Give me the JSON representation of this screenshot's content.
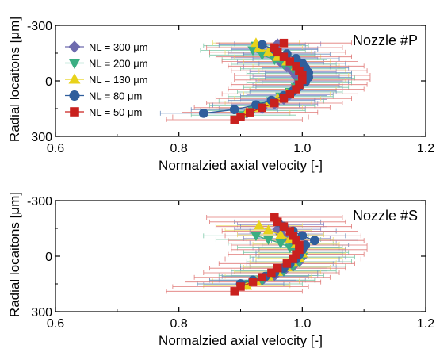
{
  "colors": {
    "s300": "#6E6BAE",
    "s200": "#3AAE82",
    "s130": "#E8D21A",
    "s80": "#2F5E9C",
    "s50": "#C9211E",
    "err300": "#8F8CC8",
    "err200": "#7DC9A8",
    "err130": "#EEE27A",
    "err80": "#6E90C0",
    "err50": "#E07A78"
  },
  "chart_data": [
    {
      "type": "scatter",
      "title": "Nozzle #P",
      "xlabel": "Normalzied axial velocity [-]",
      "ylabel": "Radial locaitons [μm]",
      "xlim": [
        0.6,
        1.2
      ],
      "ylim": [
        -300,
        300
      ],
      "y_inverted": true,
      "xticks": [
        "0.6",
        "0.8",
        "1.0",
        "1.2"
      ],
      "yticks": [
        "-300",
        "0",
        "300"
      ],
      "legend": "top-left",
      "error_bars": "horizontal",
      "series": [
        {
          "name": "NL = 300 μm",
          "marker": "diamond",
          "color": "s300",
          "err_color": "err300",
          "err": 0.07,
          "points": [
            [
              0.96,
              -200
            ],
            [
              0.955,
              -175
            ],
            [
              0.95,
              -150
            ],
            [
              0.955,
              -125
            ],
            [
              0.965,
              -100
            ],
            [
              0.975,
              -75
            ],
            [
              0.985,
              -50
            ],
            [
              0.99,
              -25
            ],
            [
              0.995,
              0
            ],
            [
              0.99,
              25
            ],
            [
              0.985,
              50
            ],
            [
              0.98,
              75
            ],
            [
              0.97,
              100
            ],
            [
              0.955,
              125
            ],
            [
              0.935,
              150
            ],
            [
              0.91,
              175
            ]
          ]
        },
        {
          "name": "NL = 200 μm",
          "marker": "triangle-down",
          "color": "s200",
          "err_color": "err200",
          "err": 0.085,
          "points": [
            [
              0.925,
              -190
            ],
            [
              0.92,
              -165
            ],
            [
              0.935,
              -140
            ],
            [
              0.955,
              -115
            ],
            [
              0.97,
              -90
            ],
            [
              0.985,
              -65
            ],
            [
              0.995,
              -40
            ],
            [
              1.0,
              -15
            ],
            [
              0.995,
              10
            ],
            [
              0.99,
              35
            ],
            [
              0.98,
              60
            ],
            [
              0.965,
              85
            ],
            [
              0.95,
              110
            ],
            [
              0.935,
              135
            ],
            [
              0.92,
              160
            ],
            [
              0.905,
              185
            ]
          ]
        },
        {
          "name": "NL = 130 μm",
          "marker": "triangle-up",
          "color": "s130",
          "err_color": "err130",
          "err": 0.07,
          "points": [
            [
              0.925,
              -205
            ],
            [
              0.93,
              -180
            ],
            [
              0.945,
              -155
            ],
            [
              0.96,
              -130
            ],
            [
              0.975,
              -105
            ],
            [
              0.99,
              -80
            ],
            [
              1.0,
              -55
            ],
            [
              1.005,
              -30
            ],
            [
              1.0,
              -5
            ],
            [
              0.995,
              20
            ],
            [
              0.985,
              45
            ],
            [
              0.975,
              70
            ],
            [
              0.96,
              95
            ],
            [
              0.945,
              120
            ],
            [
              0.93,
              145
            ],
            [
              0.91,
              170
            ]
          ]
        },
        {
          "name": "NL = 80 μm",
          "marker": "circle",
          "color": "s80",
          "err_color": "err80",
          "err": 0.07,
          "points": [
            [
              0.935,
              -195
            ],
            [
              0.955,
              -170
            ],
            [
              0.975,
              -145
            ],
            [
              0.99,
              -120
            ],
            [
              1.0,
              -95
            ],
            [
              1.005,
              -70
            ],
            [
              1.01,
              -45
            ],
            [
              1.01,
              -20
            ],
            [
              1.005,
              5
            ],
            [
              0.995,
              30
            ],
            [
              0.985,
              55
            ],
            [
              0.97,
              80
            ],
            [
              0.95,
              105
            ],
            [
              0.925,
              130
            ],
            [
              0.89,
              155
            ],
            [
              0.84,
              175
            ]
          ]
        },
        {
          "name": "NL = 50 μm",
          "marker": "square",
          "color": "s50",
          "err_color": "err50",
          "err": 0.11,
          "points": [
            [
              0.97,
              -205
            ],
            [
              0.955,
              -180
            ],
            [
              0.96,
              -155
            ],
            [
              0.97,
              -130
            ],
            [
              0.98,
              -105
            ],
            [
              0.99,
              -80
            ],
            [
              0.995,
              -55
            ],
            [
              1.0,
              -30
            ],
            [
              1.0,
              -5
            ],
            [
              0.995,
              20
            ],
            [
              0.99,
              45
            ],
            [
              0.98,
              70
            ],
            [
              0.97,
              95
            ],
            [
              0.955,
              120
            ],
            [
              0.935,
              145
            ],
            [
              0.915,
              170
            ],
            [
              0.9,
              195
            ],
            [
              0.89,
              210
            ]
          ]
        }
      ]
    },
    {
      "type": "scatter",
      "title": "Nozzle #S",
      "xlabel": "Normalzied axial velocity [-]",
      "ylabel": "Radial locaitons [μm]",
      "xlim": [
        0.6,
        1.2
      ],
      "ylim": [
        -300,
        300
      ],
      "y_inverted": true,
      "xticks": [
        "0.6",
        "0.8",
        "1.0",
        "1.2"
      ],
      "yticks": [
        "-300",
        "0",
        "300"
      ],
      "legend": "none",
      "error_bars": "horizontal",
      "series": [
        {
          "name": "NL = 300 μm",
          "marker": "diamond",
          "color": "s300",
          "err_color": "err300",
          "err": 0.07,
          "points": [
            [
              0.965,
              -170
            ],
            [
              0.96,
              -145
            ],
            [
              0.965,
              -120
            ],
            [
              0.975,
              -95
            ],
            [
              0.985,
              -70
            ],
            [
              0.99,
              -45
            ],
            [
              0.995,
              -20
            ],
            [
              1.0,
              5
            ],
            [
              0.995,
              30
            ],
            [
              0.985,
              55
            ],
            [
              0.97,
              80
            ],
            [
              0.955,
              105
            ],
            [
              0.935,
              130
            ],
            [
              0.91,
              155
            ]
          ]
        },
        {
          "name": "NL = 200 μm",
          "marker": "triangle-down",
          "color": "s200",
          "err_color": "err200",
          "err": 0.085,
          "points": [
            [
              0.925,
              -110
            ],
            [
              0.945,
              -90
            ],
            [
              0.965,
              -70
            ],
            [
              0.98,
              -45
            ],
            [
              0.99,
              -20
            ],
            [
              1.0,
              5
            ],
            [
              0.995,
              30
            ],
            [
              0.985,
              55
            ],
            [
              0.97,
              80
            ],
            [
              0.95,
              105
            ],
            [
              0.935,
              130
            ],
            [
              0.915,
              150
            ]
          ]
        },
        {
          "name": "NL = 130 μm",
          "marker": "triangle-up",
          "color": "s130",
          "err_color": "err130",
          "err": 0.07,
          "points": [
            [
              0.93,
              -165
            ],
            [
              0.945,
              -140
            ],
            [
              0.965,
              -115
            ],
            [
              0.98,
              -90
            ],
            [
              0.99,
              -65
            ],
            [
              1.0,
              -40
            ],
            [
              1.0,
              -15
            ],
            [
              0.995,
              10
            ],
            [
              0.985,
              35
            ],
            [
              0.975,
              60
            ],
            [
              0.96,
              85
            ],
            [
              0.945,
              110
            ],
            [
              0.925,
              135
            ],
            [
              0.91,
              160
            ]
          ]
        },
        {
          "name": "NL = 80 μm",
          "marker": "circle",
          "color": "s80",
          "err_color": "err80",
          "err": 0.07,
          "points": [
            [
              0.96,
              -185
            ],
            [
              0.97,
              -160
            ],
            [
              0.985,
              -135
            ],
            [
              1.0,
              -110
            ],
            [
              1.02,
              -85
            ],
            [
              1.005,
              -60
            ],
            [
              1.0,
              -35
            ],
            [
              0.995,
              -10
            ],
            [
              0.99,
              15
            ],
            [
              0.98,
              40
            ],
            [
              0.97,
              65
            ],
            [
              0.955,
              90
            ],
            [
              0.94,
              110
            ],
            [
              0.92,
              130
            ],
            [
              0.9,
              150
            ]
          ]
        },
        {
          "name": "NL = 50 μm",
          "marker": "square",
          "color": "s50",
          "err_color": "err50",
          "err": 0.11,
          "points": [
            [
              0.955,
              -210
            ],
            [
              0.96,
              -185
            ],
            [
              0.97,
              -160
            ],
            [
              0.98,
              -135
            ],
            [
              0.985,
              -110
            ],
            [
              0.99,
              -85
            ],
            [
              0.995,
              -60
            ],
            [
              0.995,
              -35
            ],
            [
              0.99,
              -10
            ],
            [
              0.985,
              15
            ],
            [
              0.975,
              40
            ],
            [
              0.96,
              65
            ],
            [
              0.95,
              90
            ],
            [
              0.935,
              115
            ],
            [
              0.92,
              140
            ],
            [
              0.9,
              165
            ],
            [
              0.89,
              190
            ]
          ]
        }
      ]
    }
  ]
}
